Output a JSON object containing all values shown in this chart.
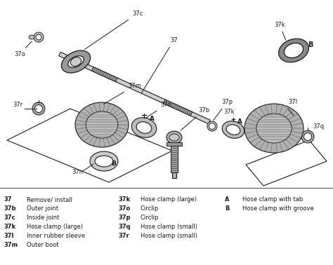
{
  "bg_color": "#ffffff",
  "line_color": "#1a1a1a",
  "gray_fill": "#c8c8c8",
  "dark_fill": "#888888",
  "light_fill": "#e8e8e8",
  "legend_col1": [
    [
      "37",
      "Remove/ install"
    ],
    [
      "37b",
      "Outer joint"
    ],
    [
      "37c",
      "Inside joint"
    ],
    [
      "37k",
      "Hose clamp (large)"
    ],
    [
      "37l",
      "Inner rubber sleeve"
    ],
    [
      "37m",
      "Outer boot"
    ]
  ],
  "legend_col2": [
    [
      "37k",
      "Hose clamp (large)"
    ],
    [
      "37o",
      "Circlip"
    ],
    [
      "37p",
      "Circlip"
    ],
    [
      "37q",
      "Hose clamp (small)"
    ],
    [
      "37r",
      "Hose clamp (small)"
    ]
  ],
  "legend_col3": [
    [
      "A",
      "Hose clamp with tab"
    ],
    [
      "B",
      "Hose clamp with groove"
    ]
  ],
  "fig_width": 4.74,
  "fig_height": 3.78,
  "dpi": 100
}
